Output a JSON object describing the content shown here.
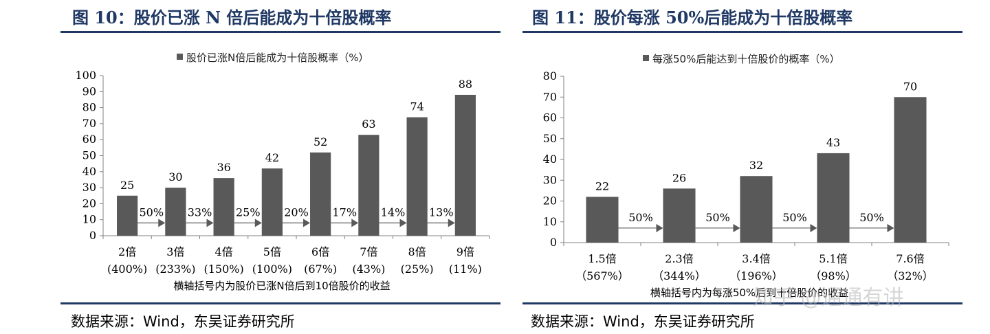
{
  "chart_data": [
    {
      "type": "bar",
      "figure_title": "图 10：股价已涨 N 倍后能成为十倍股概率",
      "legend": "股价已涨N倍后能成为十倍股概率（%）",
      "legend_position": "top-center",
      "categories": [
        "2倍",
        "3倍",
        "4倍",
        "5倍",
        "6倍",
        "7倍",
        "8倍",
        "9倍"
      ],
      "sub_categories": [
        "(400%)",
        "(233%)",
        "(150%)",
        "(100%)",
        "(67%)",
        "(43%)",
        "(25%)",
        "(11%)"
      ],
      "values": [
        25,
        30,
        36,
        42,
        52,
        63,
        74,
        88
      ],
      "value_labels": [
        "25",
        "30",
        "36",
        "42",
        "52",
        "63",
        "74",
        "88"
      ],
      "arrow_labels": [
        "50%",
        "33%",
        "25%",
        "20%",
        "17%",
        "14%",
        "13%"
      ],
      "xlabel": "横轴括号内为股价已涨N倍后到10倍股价的收益",
      "ylim": [
        0,
        100
      ],
      "yticks": [
        "0",
        "10",
        "20",
        "30",
        "40",
        "50",
        "60",
        "70",
        "80",
        "90",
        "100"
      ],
      "grid": false,
      "bar_color": "#595959",
      "source": "数据来源：Wind，东吴证券研究所"
    },
    {
      "type": "bar",
      "figure_title": "图 11：股价每涨 50%后能成为十倍股概率",
      "legend": "每涨50%后能达到十倍股价的概率（%）",
      "legend_position": "top-center",
      "categories": [
        "1.5倍",
        "2.3倍",
        "3.4倍",
        "5.1倍",
        "7.6倍"
      ],
      "sub_categories": [
        "（567%）",
        "（344%）",
        "（196%）",
        "（98%）",
        "（32%）"
      ],
      "values": [
        22,
        26,
        32,
        43,
        70
      ],
      "value_labels": [
        "22",
        "26",
        "32",
        "43",
        "70"
      ],
      "arrow_labels": [
        "50%",
        "50%",
        "50%",
        "50%"
      ],
      "xlabel": "横轴括号内为每涨50%后到十倍股价的收益",
      "ylim": [
        0,
        80
      ],
      "yticks": [
        "0",
        "10",
        "20",
        "30",
        "40",
        "50",
        "60",
        "70",
        "80"
      ],
      "grid": false,
      "bar_color": "#595959",
      "source": "数据来源：Wind，东吴证券研究所"
    }
  ],
  "watermark": "知乎 @通通有讲"
}
